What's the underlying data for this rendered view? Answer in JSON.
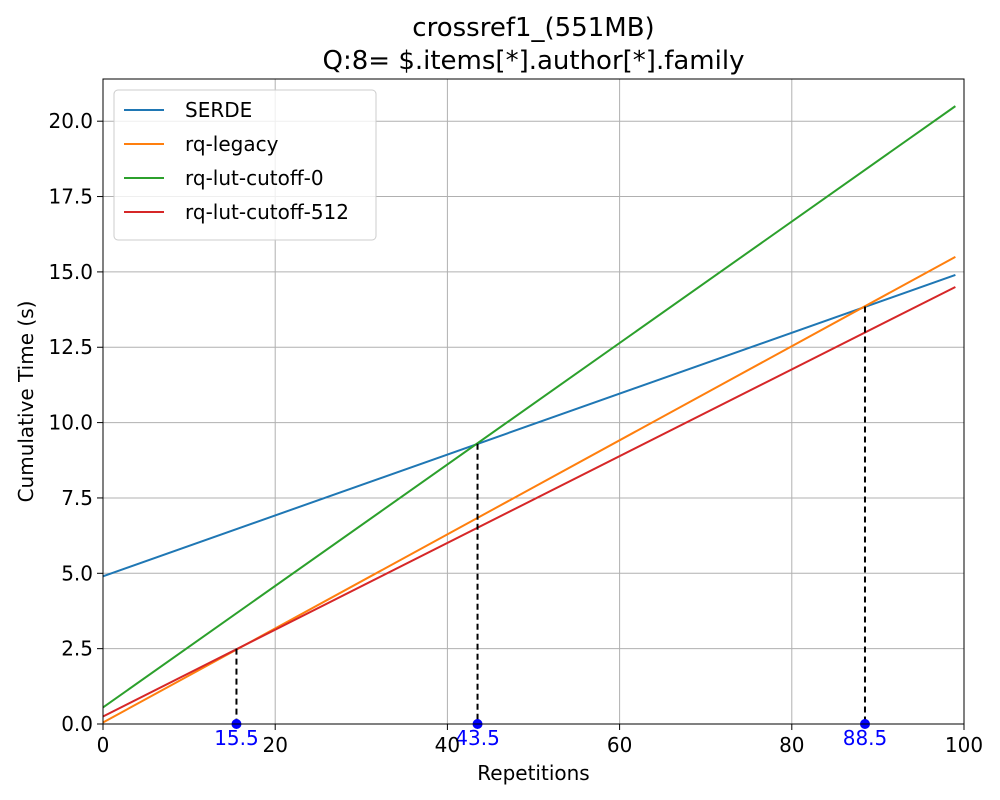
{
  "chart_data": {
    "type": "line",
    "title": "crossref1_(551MB)",
    "subtitle": "Q:8= $.items[*].author[*].family",
    "xlabel": "Repetitions",
    "ylabel": "Cumulative Time (s)",
    "xlim": [
      0,
      100
    ],
    "ylim": [
      0,
      21.4
    ],
    "xticks": [
      0,
      20,
      40,
      60,
      80,
      100
    ],
    "xtick_labels": [
      "0",
      "20",
      "40",
      "60",
      "80",
      "100"
    ],
    "yticks": [
      0,
      2.5,
      5,
      7.5,
      10,
      12.5,
      15,
      17.5,
      20
    ],
    "ytick_labels": [
      "0.0",
      "2.5",
      "5.0",
      "7.5",
      "10.0",
      "12.5",
      "15.0",
      "17.5",
      "20.0"
    ],
    "grid": true,
    "legend_position": "top-left",
    "series": [
      {
        "name": "SERDE",
        "color": "#1f77b4",
        "x": [
          0,
          99
        ],
        "y": [
          4.9,
          14.9
        ]
      },
      {
        "name": "rq-legacy",
        "color": "#ff7f0e",
        "x": [
          0,
          99
        ],
        "y": [
          0.05,
          15.5
        ]
      },
      {
        "name": "rq-lut-cutoff-0",
        "color": "#2ca02c",
        "x": [
          0,
          99
        ],
        "y": [
          0.55,
          20.5
        ]
      },
      {
        "name": "rq-lut-cutoff-512",
        "color": "#d62728",
        "x": [
          0,
          99
        ],
        "y": [
          0.25,
          14.5
        ]
      }
    ],
    "crossovers": [
      {
        "x": 15.5,
        "y": 2.5,
        "label": "15.5"
      },
      {
        "x": 43.5,
        "y": 9.3,
        "label": "43.5"
      },
      {
        "x": 88.5,
        "y": 13.85,
        "label": "88.5"
      }
    ],
    "marker_color": "#0000ff"
  }
}
